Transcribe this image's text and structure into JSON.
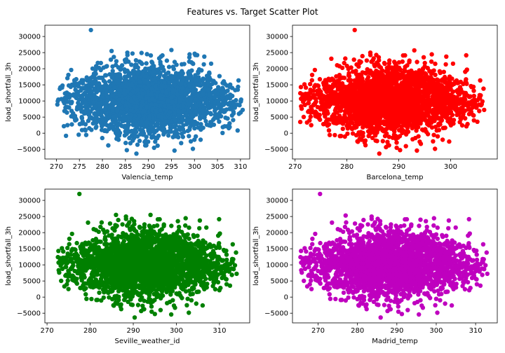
{
  "figure": {
    "title": "Features vs. Target Scatter Plot"
  },
  "chart_data": [
    {
      "type": "scatter",
      "xlabel": "Valencia_temp",
      "ylabel": "load_shortfall_3h",
      "color": "#1f77b4",
      "xlim": [
        267.5,
        312
      ],
      "ylim": [
        -8000,
        33500
      ],
      "xticks": [
        270,
        275,
        280,
        285,
        290,
        295,
        300,
        305,
        310
      ],
      "yticks": [
        -5000,
        0,
        5000,
        10000,
        15000,
        20000,
        25000,
        30000
      ],
      "x_range": [
        270,
        310.5
      ],
      "y_range": [
        -6500,
        25800
      ],
      "outliers": [
        [
          277.5,
          32000
        ],
        [
          282,
          25500
        ],
        [
          295,
          25800
        ]
      ]
    },
    {
      "type": "scatter",
      "xlabel": "Barcelona_temp",
      "ylabel": "load_shortfall_3h",
      "color": "#ff0000",
      "xlim": [
        269.5,
        309
      ],
      "ylim": [
        -8000,
        33500
      ],
      "xticks": [
        270,
        280,
        290,
        300
      ],
      "yticks": [
        -5000,
        0,
        5000,
        10000,
        15000,
        20000,
        25000,
        30000
      ],
      "x_range": [
        271,
        306.5
      ],
      "y_range": [
        -6500,
        25800
      ],
      "outliers": [
        [
          281.5,
          32000
        ],
        [
          293,
          25700
        ],
        [
          271,
          3500
        ],
        [
          306,
          9000
        ]
      ]
    },
    {
      "type": "scatter",
      "xlabel": "Seville_weather_id",
      "ylabel": "load_shortfall_3h",
      "color": "#008000",
      "xlim": [
        269.5,
        317
      ],
      "ylim": [
        -8000,
        33500
      ],
      "xticks": [
        270,
        280,
        290,
        300,
        310
      ],
      "yticks": [
        -5000,
        0,
        5000,
        10000,
        15000,
        20000,
        25000,
        30000
      ],
      "x_range": [
        272.5,
        314
      ],
      "y_range": [
        -6500,
        25800
      ],
      "outliers": [
        [
          277.5,
          32000
        ],
        [
          286,
          25500
        ],
        [
          294,
          25500
        ]
      ]
    },
    {
      "type": "scatter",
      "xlabel": "Madrid_temp",
      "ylabel": "load_shortfall_3h",
      "color": "#bf00bf",
      "xlim": [
        263.5,
        315.5
      ],
      "ylim": [
        -8000,
        33500
      ],
      "xticks": [
        270,
        280,
        290,
        300,
        310
      ],
      "yticks": [
        -5000,
        0,
        5000,
        10000,
        15000,
        20000,
        25000,
        30000
      ],
      "x_range": [
        265.5,
        313
      ],
      "y_range": [
        -6500,
        25800
      ],
      "outliers": [
        [
          270.5,
          32000
        ],
        [
          277,
          25300
        ],
        [
          296,
          24000
        ]
      ]
    }
  ]
}
